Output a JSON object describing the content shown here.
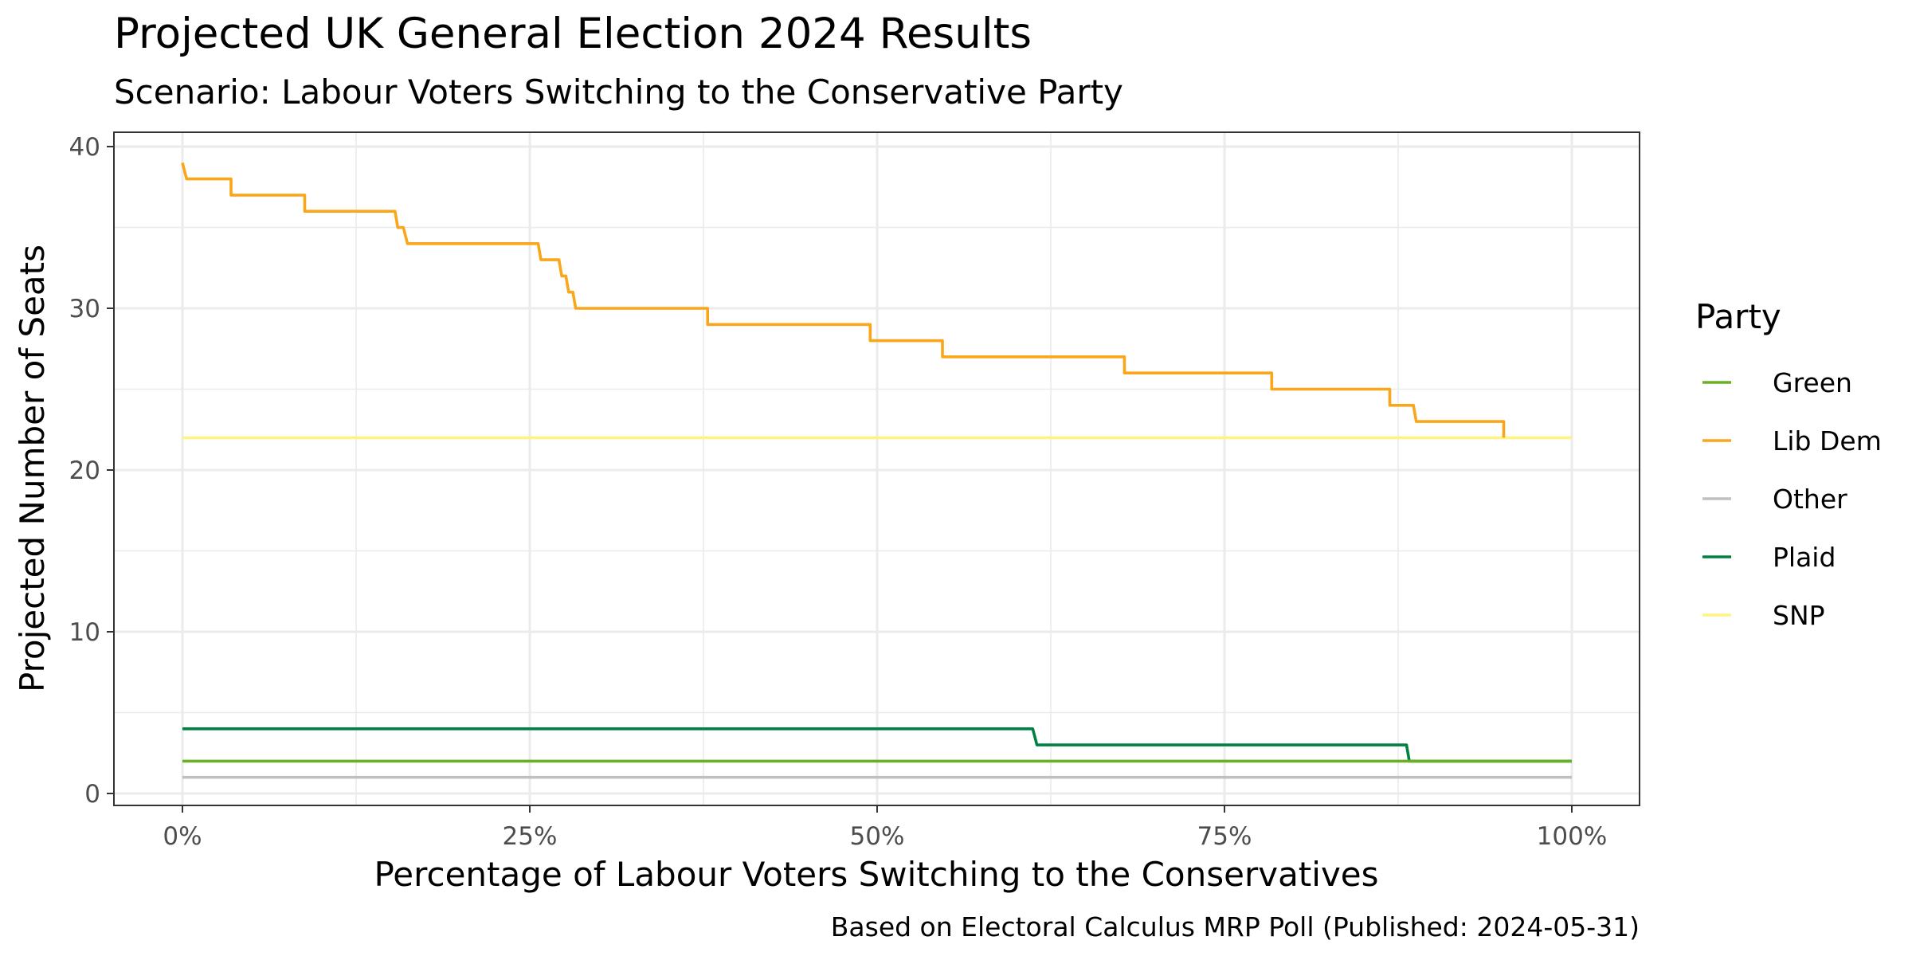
{
  "chart_data": {
    "type": "line",
    "title": "Projected UK General Election 2024 Results",
    "subtitle": "Scenario: Labour Voters Switching to the Conservative Party",
    "xlabel": "Percentage of Labour Voters Switching to the Conservatives",
    "ylabel": "Projected Number of Seats",
    "caption": "Based on Electoral Calculus MRP Poll (Published: 2024-05-31)",
    "xlim": [
      0,
      100
    ],
    "ylim": [
      0,
      40
    ],
    "x_ticks": [
      0,
      25,
      50,
      75,
      100
    ],
    "x_tick_labels": [
      "0%",
      "25%",
      "50%",
      "75%",
      "100%"
    ],
    "y_ticks": [
      0,
      10,
      20,
      30,
      40
    ],
    "y_tick_labels": [
      "0",
      "10",
      "20",
      "30",
      "40"
    ],
    "grid": true,
    "legend": {
      "title": "Party",
      "position": "right",
      "entries": [
        "Green",
        "Lib Dem",
        "Other",
        "Plaid",
        "SNP"
      ]
    },
    "series": [
      {
        "name": "SNP",
        "color": "#fff383",
        "points": [
          [
            0,
            22
          ],
          [
            100,
            22
          ]
        ]
      },
      {
        "name": "Lib Dem",
        "color": "#faa61a",
        "points": [
          [
            0,
            39
          ],
          [
            0.3,
            38
          ],
          [
            3.5,
            38
          ],
          [
            3.5,
            37
          ],
          [
            8.8,
            37
          ],
          [
            8.8,
            36
          ],
          [
            15.3,
            36
          ],
          [
            15.5,
            35
          ],
          [
            15.9,
            35
          ],
          [
            16.2,
            34
          ],
          [
            25.6,
            34
          ],
          [
            25.8,
            33
          ],
          [
            27.1,
            33
          ],
          [
            27.3,
            32
          ],
          [
            27.6,
            32
          ],
          [
            27.8,
            31
          ],
          [
            28.1,
            31
          ],
          [
            28.3,
            30
          ],
          [
            37.8,
            30
          ],
          [
            37.8,
            29
          ],
          [
            49.5,
            29
          ],
          [
            49.5,
            28
          ],
          [
            54.7,
            28
          ],
          [
            54.7,
            27
          ],
          [
            67.8,
            27
          ],
          [
            67.8,
            26
          ],
          [
            78.4,
            26
          ],
          [
            78.4,
            25
          ],
          [
            86.9,
            25
          ],
          [
            86.9,
            24
          ],
          [
            88.6,
            24
          ],
          [
            88.8,
            23
          ],
          [
            95.1,
            23
          ],
          [
            95.1,
            22
          ]
        ]
      },
      {
        "name": "Plaid",
        "color": "#008142",
        "points": [
          [
            0,
            4
          ],
          [
            61.2,
            4
          ],
          [
            61.5,
            3
          ],
          [
            88.1,
            3
          ],
          [
            88.3,
            2
          ],
          [
            100,
            2
          ]
        ]
      },
      {
        "name": "Green",
        "color": "#6ab023",
        "points": [
          [
            0,
            2
          ],
          [
            100,
            2
          ]
        ]
      },
      {
        "name": "Other",
        "color": "#c0c0c0",
        "points": [
          [
            0,
            1
          ],
          [
            100,
            1
          ]
        ]
      }
    ]
  }
}
